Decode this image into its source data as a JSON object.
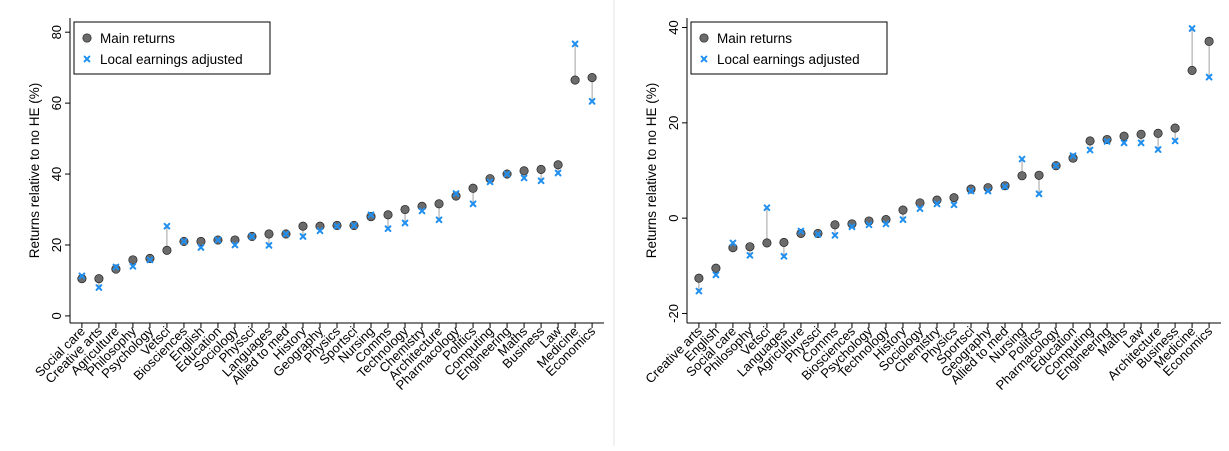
{
  "colors": {
    "main": "#6b6b6b",
    "main_edge": "#222222",
    "adjusted": "#1f8ff0",
    "connector": "#8a8a8a",
    "axis": "#000000",
    "legend_border": "#000000"
  },
  "chart_data": [
    {
      "type": "scatter",
      "title": "",
      "xlabel": "",
      "ylabel": "Returns relative to no HE (%)",
      "ylim": [
        -2,
        84
      ],
      "yticks": [
        0,
        20,
        40,
        60,
        80
      ],
      "grid": false,
      "legend_position": "top-left",
      "categories": [
        "Social care",
        "Creative arts",
        "Agriculture",
        "Philosophy",
        "Psychology",
        "Vetsci",
        "Biosciences",
        "English",
        "Education",
        "Sociology",
        "Physsci",
        "Languages",
        "Allied to med",
        "History",
        "Geography",
        "Physics",
        "Sportsci",
        "Nursing",
        "Comms",
        "Technology",
        "Chemistry",
        "Architecture",
        "Pharmacology",
        "Politics",
        "Computing",
        "Engineering",
        "Maths",
        "Business",
        "Law",
        "Medicine",
        "Economics"
      ],
      "series": [
        {
          "name": "Main returns",
          "values": [
            10.5,
            10.5,
            13.2,
            15.8,
            16.2,
            18.5,
            21.0,
            21.0,
            21.4,
            21.4,
            22.4,
            23.1,
            23.1,
            25.3,
            25.3,
            25.5,
            25.5,
            28.0,
            28.5,
            30.0,
            30.9,
            31.6,
            33.8,
            36.0,
            38.7,
            40.0,
            40.9,
            41.3,
            42.6,
            66.5,
            67.2
          ]
        },
        {
          "name": "Local earnings adjusted",
          "values": [
            11.3,
            8.0,
            13.8,
            14.0,
            15.8,
            25.3,
            21.0,
            19.3,
            21.4,
            20.0,
            22.4,
            19.9,
            23.1,
            22.4,
            24.0,
            25.3,
            25.5,
            28.5,
            24.6,
            26.2,
            29.6,
            27.1,
            34.5,
            31.6,
            37.8,
            40.0,
            38.9,
            38.1,
            40.3,
            76.7,
            60.5
          ]
        }
      ]
    },
    {
      "type": "scatter",
      "title": "",
      "xlabel": "",
      "ylabel": "Returns relative to no HE (%)",
      "ylim": [
        -22,
        42
      ],
      "yticks": [
        -20,
        0,
        20,
        40
      ],
      "grid": false,
      "legend_position": "top-left",
      "categories": [
        "Creative arts",
        "English",
        "Social care",
        "Philosophy",
        "Vetsci",
        "Languages",
        "Agriculture",
        "Physsci",
        "Comms",
        "Biosciences",
        "Psychology",
        "Technology",
        "History",
        "Sociology",
        "Chemistry",
        "Physics",
        "Sportsci",
        "Geography",
        "Allied to med",
        "Nursing",
        "Politics",
        "Pharmacology",
        "Education",
        "Computing",
        "Engineering",
        "Maths",
        "Law",
        "Architecture",
        "Business",
        "Medicine",
        "Economics"
      ],
      "series": [
        {
          "name": "Main returns",
          "values": [
            -12.6,
            -10.5,
            -6.2,
            -6.0,
            -5.2,
            -5.1,
            -3.2,
            -3.2,
            -1.4,
            -1.2,
            -0.6,
            -0.3,
            1.7,
            3.2,
            3.8,
            4.3,
            6.1,
            6.4,
            6.8,
            8.9,
            9.0,
            11.0,
            12.6,
            16.2,
            16.5,
            17.2,
            17.6,
            17.8,
            18.9,
            31.0,
            37.1
          ]
        },
        {
          "name": "Local earnings adjusted",
          "values": [
            -15.3,
            -11.9,
            -5.2,
            -7.8,
            2.2,
            -8.0,
            -2.7,
            -3.4,
            -3.6,
            -1.8,
            -1.4,
            -1.2,
            -0.3,
            2.0,
            3.0,
            2.8,
            5.7,
            5.7,
            6.6,
            12.4,
            5.1,
            11.0,
            13.1,
            14.3,
            16.1,
            15.8,
            15.8,
            14.4,
            16.2,
            39.8,
            29.6
          ]
        }
      ]
    }
  ]
}
